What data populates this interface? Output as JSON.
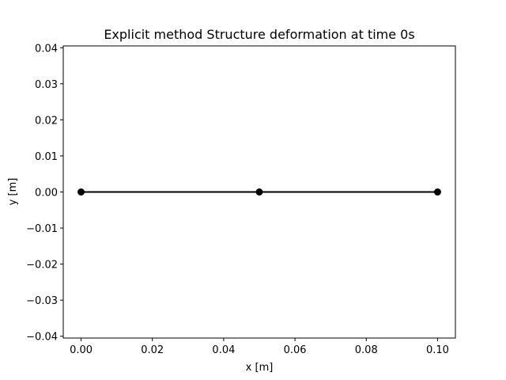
{
  "chart_data": {
    "type": "line",
    "title": "Explicit method Structure deformation at time 0s",
    "xlabel": "x [m]",
    "ylabel": "y [m]",
    "xlim": [
      -0.005,
      0.105
    ],
    "ylim": [
      -0.0405,
      0.0405
    ],
    "x_ticks": [
      0.0,
      0.02,
      0.04,
      0.06,
      0.08,
      0.1
    ],
    "x_tick_labels": [
      "0.00",
      "0.02",
      "0.04",
      "0.06",
      "0.08",
      "0.10"
    ],
    "y_ticks": [
      0.04,
      0.03,
      0.02,
      0.01,
      0.0,
      -0.01,
      -0.02,
      -0.03,
      -0.04
    ],
    "y_tick_labels": [
      "0.04",
      "0.03",
      "0.02",
      "0.01",
      "0.00",
      "−0.01",
      "−0.02",
      "−0.03",
      "−0.04"
    ],
    "grid": false,
    "series": [
      {
        "x": [
          0.0,
          0.05,
          0.1
        ],
        "y": [
          0.0,
          0.0,
          0.0
        ],
        "color": "#000000",
        "marker": "circle"
      }
    ]
  }
}
